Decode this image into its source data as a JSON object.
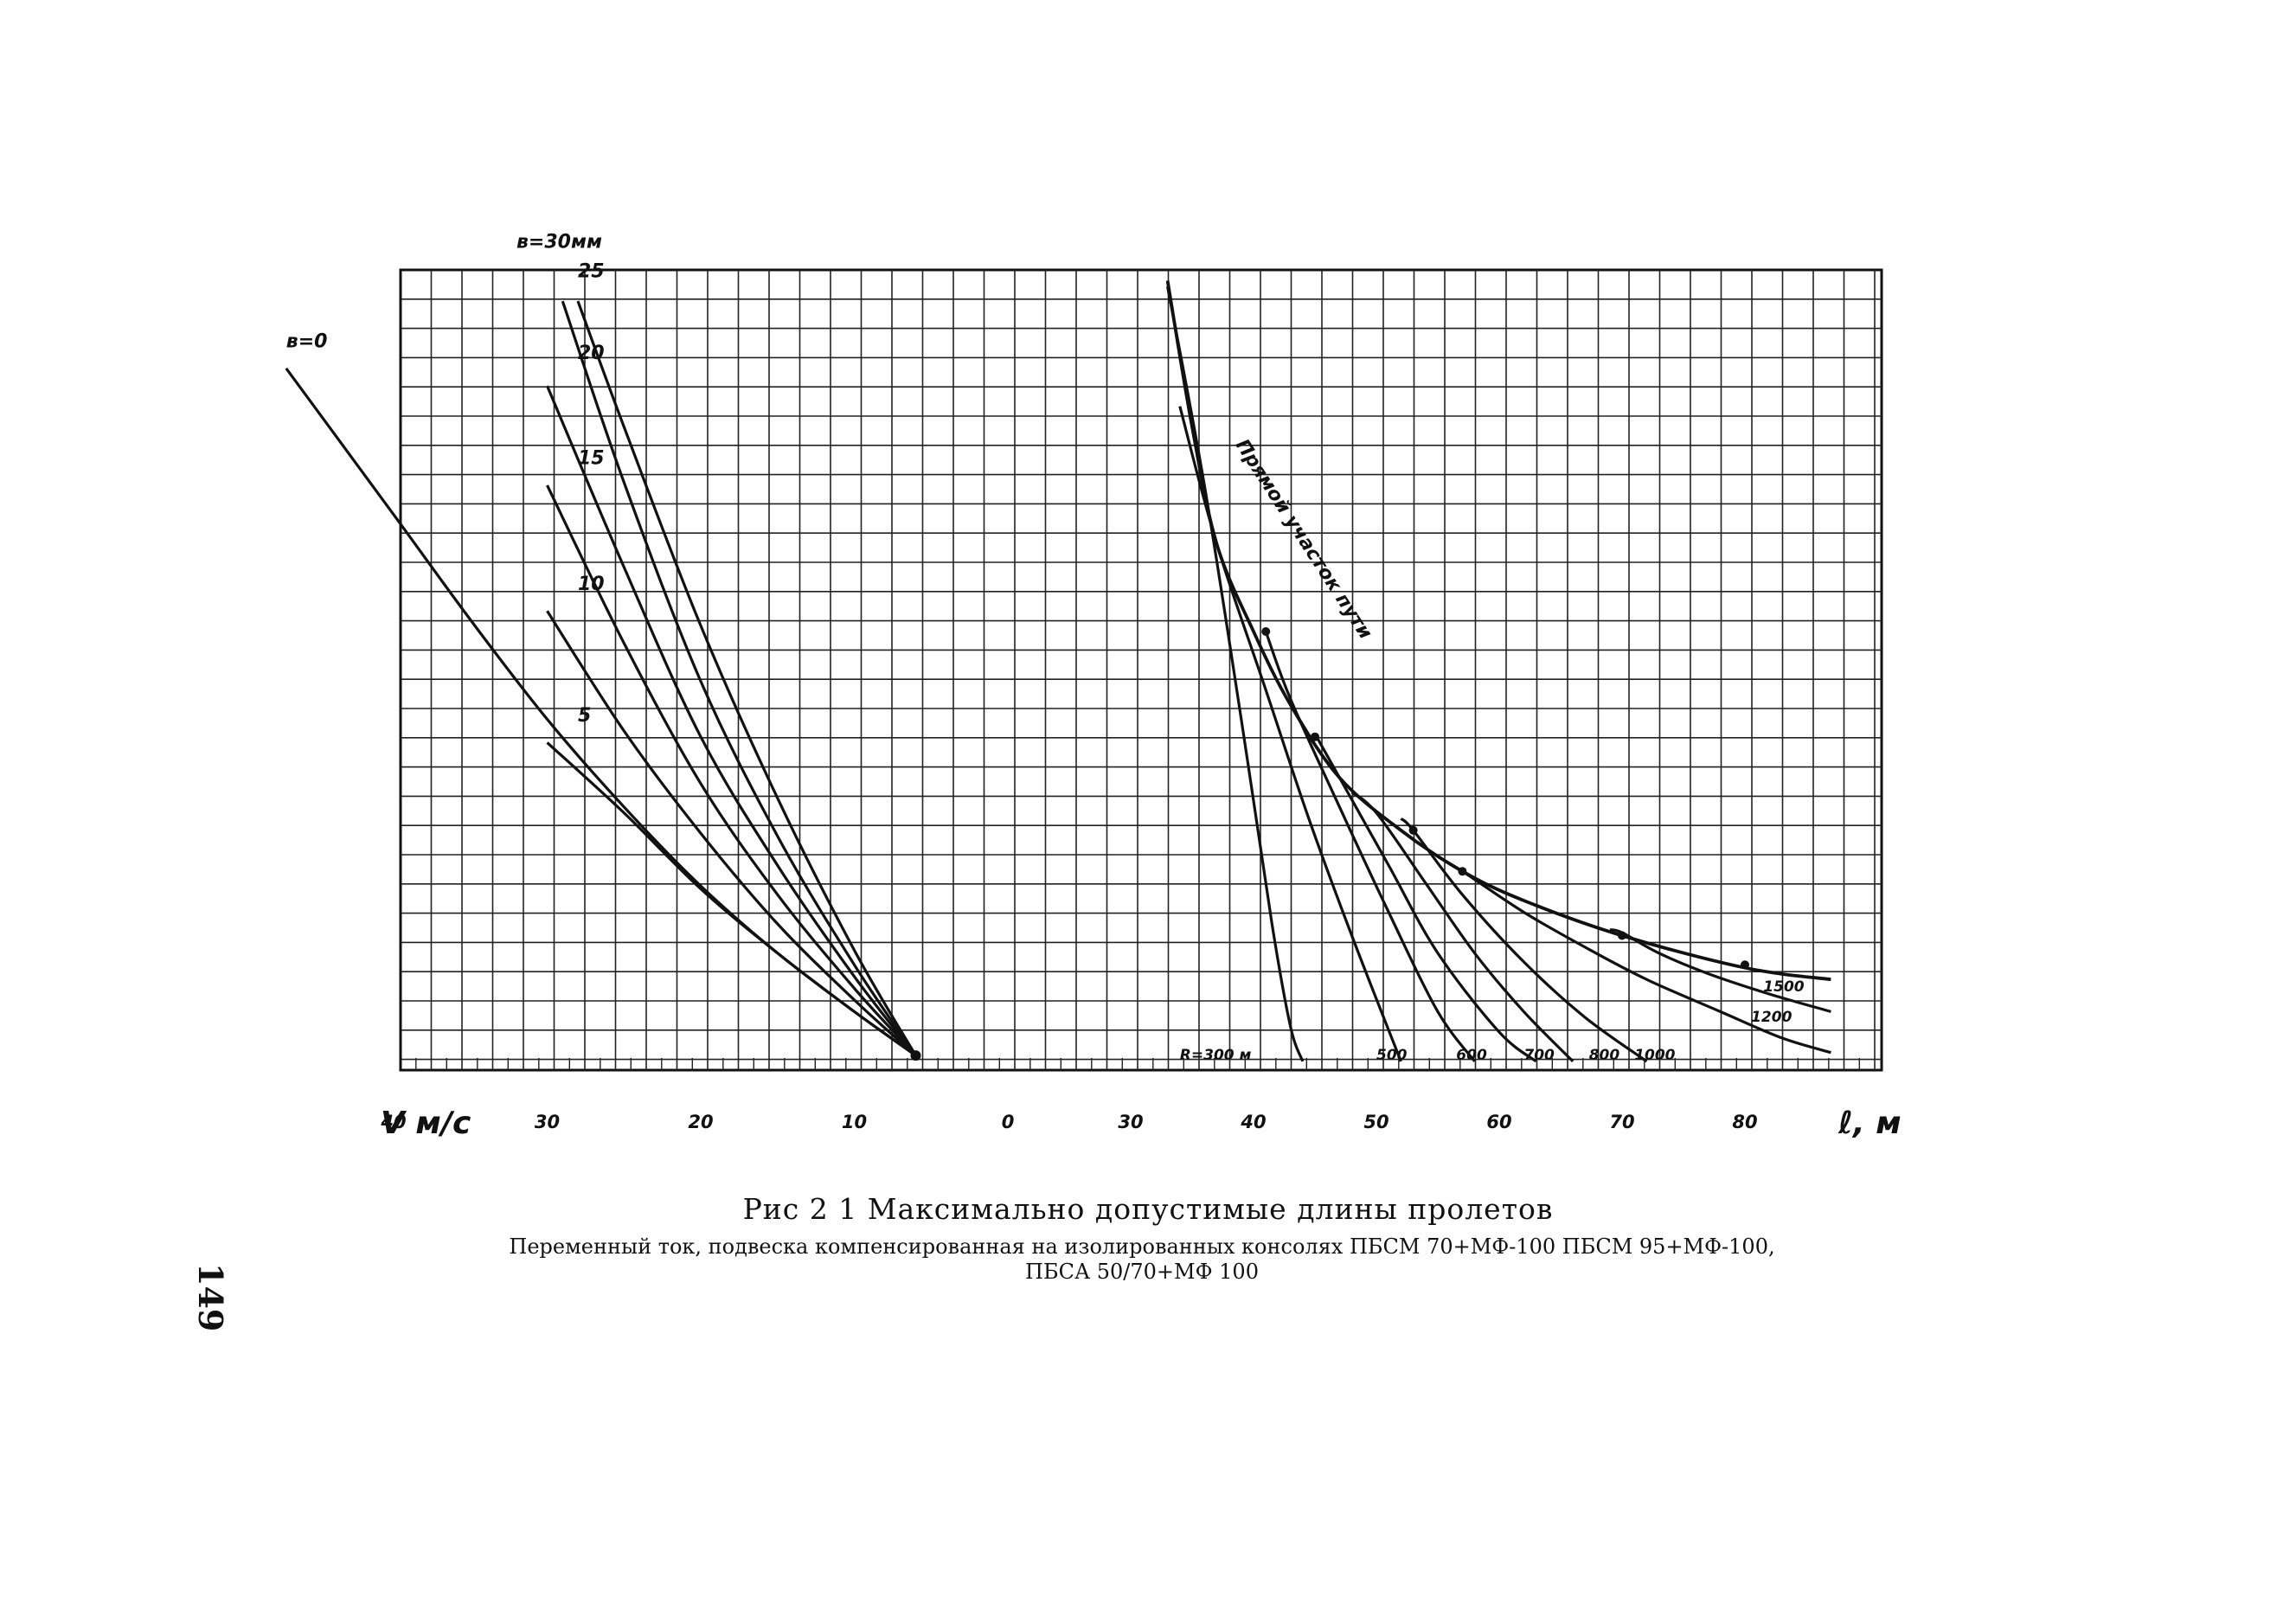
{
  "chart_data": {
    "type": "line",
    "caption": "Рис 2 1 Максимально допустимые длины пролетов",
    "subcaption": [
      "Переменный ток, подвеска компенсированная на изолированных консолях ПБСМ 70+МФ-100 ПБСМ 95+МФ-100,",
      "ПБСА 50/70+МФ 100"
    ],
    "page_number": "149",
    "left_panel": {
      "xlabel": "V м/с",
      "x_ticks": [
        "40",
        "30",
        "20",
        "10"
      ],
      "series": [
        {
          "name": "в=0",
          "points": [
            [
              47,
              24
            ],
            [
              40,
              19
            ],
            [
              35,
              15.4
            ],
            [
              30,
              12
            ],
            [
              25,
              9
            ],
            [
              20,
              6.3
            ],
            [
              15,
              4
            ],
            [
              10,
              2
            ],
            [
              6,
              0.5
            ]
          ]
        },
        {
          "name": "5",
          "points": [
            [
              30,
              11.2
            ],
            [
              25,
              8.8
            ],
            [
              20,
              6.2
            ],
            [
              15,
              4
            ],
            [
              10,
              2
            ],
            [
              6,
              0.5
            ]
          ]
        },
        {
          "name": "10",
          "points": [
            [
              30,
              15.7
            ],
            [
              25,
              11.6
            ],
            [
              20,
              8.1
            ],
            [
              15,
              5
            ],
            [
              10,
              2.4
            ],
            [
              6,
              0.5
            ]
          ]
        },
        {
          "name": "15",
          "points": [
            [
              30,
              20
            ],
            [
              25,
              14.6
            ],
            [
              20,
              9.8
            ],
            [
              15,
              6
            ],
            [
              10,
              2.8
            ],
            [
              6,
              0.5
            ]
          ]
        },
        {
          "name": "20",
          "points": [
            [
              30,
              23.4
            ],
            [
              25,
              17.2
            ],
            [
              20,
              11.4
            ],
            [
              15,
              7
            ],
            [
              10,
              3.2
            ],
            [
              6,
              0.5
            ]
          ]
        },
        {
          "name": "25",
          "points": [
            [
              29,
              26.3
            ],
            [
              25,
              20.1
            ],
            [
              20,
              13.3
            ],
            [
              15,
              8
            ],
            [
              10,
              3.6
            ],
            [
              6,
              0.5
            ]
          ]
        },
        {
          "name": "в=30мм",
          "points": [
            [
              28,
              26.3
            ],
            [
              25,
              22
            ],
            [
              20,
              15.2
            ],
            [
              15,
              9.3
            ],
            [
              10,
              4.1
            ],
            [
              6,
              0.5
            ]
          ]
        }
      ]
    },
    "right_panel": {
      "xlabel": "ℓ, м",
      "x_ticks": [
        "30",
        "40",
        "50",
        "60",
        "70",
        "80"
      ],
      "straight_track_label": "Прямой участок пути",
      "straight_track": {
        "points": [
          [
            33,
            27
          ],
          [
            35,
            22
          ],
          [
            37,
            18
          ],
          [
            40,
            15
          ],
          [
            43,
            12.5
          ],
          [
            47,
            10
          ],
          [
            52,
            8.2
          ],
          [
            57,
            6.8
          ],
          [
            62,
            5.8
          ],
          [
            70,
            4.6
          ],
          [
            80,
            3.5
          ],
          [
            87,
            3.1
          ]
        ]
      },
      "series": [
        {
          "name": "R=300 м",
          "points": [
            [
              33,
              26.8
            ],
            [
              36,
              20
            ],
            [
              39,
              12
            ],
            [
              41.5,
              5
            ],
            [
              43,
              1.5
            ],
            [
              44,
              0.3
            ]
          ]
        },
        {
          "name": "500",
          "points": [
            [
              34,
              22.7
            ],
            [
              37,
              18
            ],
            [
              41,
              13
            ],
            [
              44.5,
              8.6
            ],
            [
              48,
              4.6
            ],
            [
              52,
              0.3
            ]
          ]
        },
        {
          "name": "600",
          "points": [
            [
              41,
              15
            ],
            [
              43,
              12.7
            ],
            [
              47,
              9
            ],
            [
              51,
              5.4
            ],
            [
              55,
              2
            ],
            [
              58,
              0.3
            ]
          ]
        },
        {
          "name": "700",
          "points": [
            [
              45,
              11.5
            ],
            [
              47,
              10
            ],
            [
              51,
              7
            ],
            [
              55,
              4
            ],
            [
              60,
              1.3
            ],
            [
              63,
              0.3
            ]
          ]
        },
        {
          "name": "800",
          "points": [
            [
              48,
              9.5
            ],
            [
              50,
              8.8
            ],
            [
              54,
              6.4
            ],
            [
              58,
              4
            ],
            [
              62,
              2
            ],
            [
              66,
              0.3
            ]
          ]
        },
        {
          "name": "1000",
          "points": [
            [
              52,
              8.6
            ],
            [
              53,
              8.2
            ],
            [
              57,
              6
            ],
            [
              62,
              3.7
            ],
            [
              67,
              1.8
            ],
            [
              72,
              0.3
            ]
          ]
        },
        {
          "name": "1200",
          "points": [
            [
              55,
              7.3
            ],
            [
              57,
              6.8
            ],
            [
              62,
              5.4
            ],
            [
              67,
              4.2
            ],
            [
              72,
              3.1
            ],
            [
              78,
              2
            ],
            [
              83,
              1.1
            ],
            [
              87,
              0.6
            ]
          ]
        },
        {
          "name": "1500",
          "points": [
            [
              69,
              4.8
            ],
            [
              70,
              4.7
            ],
            [
              73,
              4
            ],
            [
              77,
              3.3
            ],
            [
              82,
              2.6
            ],
            [
              87,
              2
            ]
          ]
        }
      ]
    },
    "grid": true
  }
}
